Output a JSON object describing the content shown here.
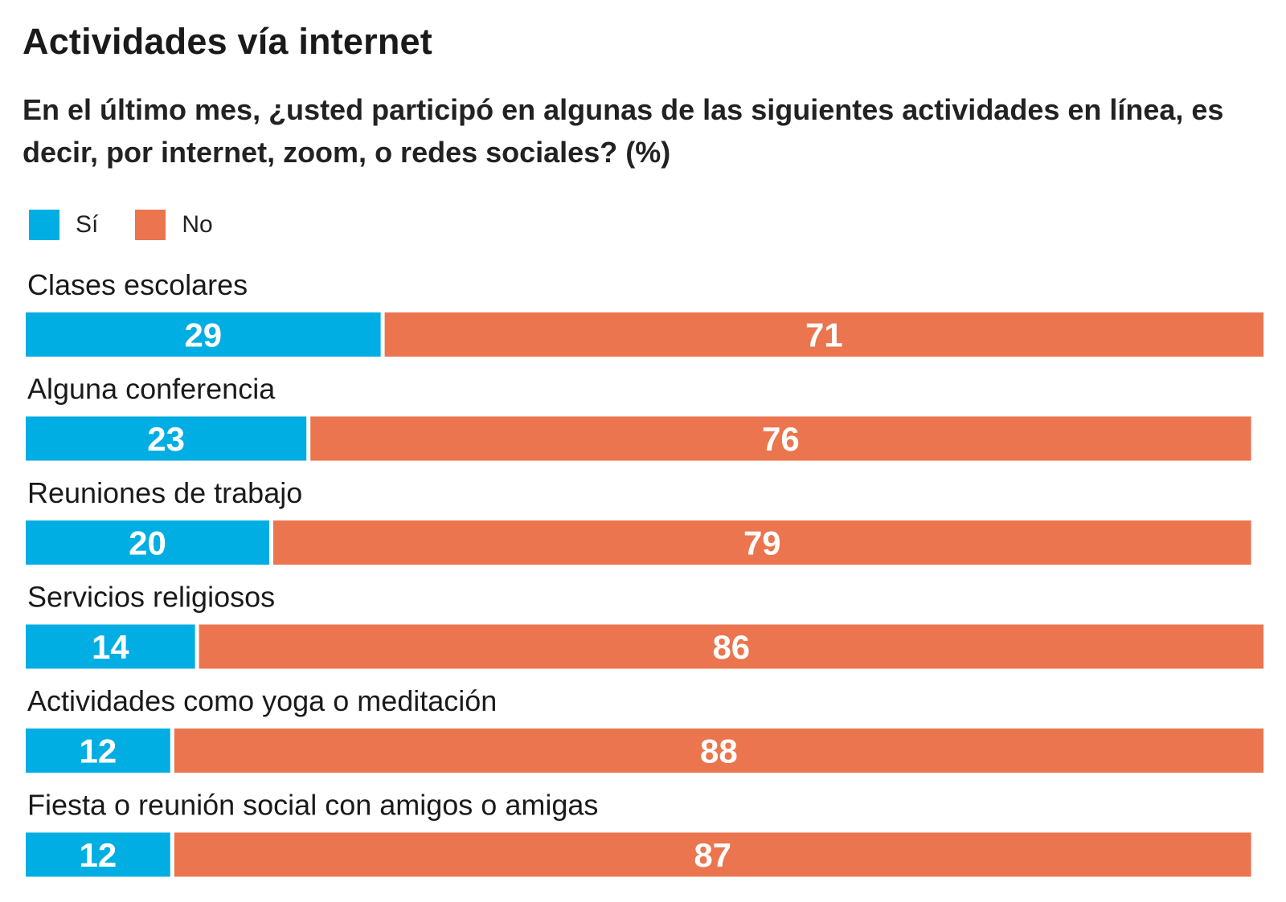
{
  "chart_data": {
    "type": "bar",
    "orientation": "horizontal",
    "stacked": true,
    "title": "Actividades vía internet",
    "subtitle": "En el último mes, ¿usted participó en algunas de las siguientes actividades en línea, es decir, por internet, zoom, o redes sociales? (%)",
    "xlim": [
      0,
      100
    ],
    "grid": false,
    "legend_position": "top-left",
    "categories": [
      "Clases escolares",
      "Alguna conferencia",
      "Reuniones de trabajo",
      "Servicios religiosos",
      "Actividades como yoga o meditación",
      "Fiesta o reunión social con amigos o amigas"
    ],
    "series": [
      {
        "name": "Sí",
        "color": "#00AEE3",
        "values": [
          29,
          23,
          20,
          14,
          12,
          12
        ]
      },
      {
        "name": "No",
        "color": "#EB754E",
        "values": [
          71,
          76,
          79,
          86,
          88,
          87
        ]
      }
    ]
  }
}
